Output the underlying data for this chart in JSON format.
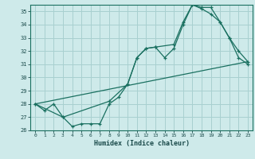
{
  "xlabel": "Humidex (Indice chaleur)",
  "bg_color": "#ceeaea",
  "grid_color": "#a8d0d0",
  "line_color": "#1a7060",
  "series1_x": [
    0,
    1,
    2,
    3,
    4,
    5,
    6,
    7,
    8,
    9,
    10,
    11,
    12,
    13,
    14,
    15,
    16,
    17,
    18,
    19,
    20,
    21,
    22,
    23
  ],
  "series1_y": [
    28.0,
    27.5,
    28.0,
    27.0,
    26.3,
    26.5,
    26.5,
    26.5,
    28.0,
    28.5,
    29.5,
    31.5,
    32.2,
    32.3,
    31.5,
    32.2,
    34.0,
    35.5,
    35.2,
    34.8,
    34.2,
    33.0,
    32.0,
    31.2
  ],
  "series2_x": [
    0,
    3,
    8,
    10,
    11,
    12,
    13,
    15,
    16,
    17,
    18,
    19,
    20,
    21,
    22,
    23
  ],
  "series2_y": [
    28.0,
    27.0,
    28.2,
    29.5,
    31.5,
    32.2,
    32.3,
    32.5,
    34.2,
    35.5,
    35.3,
    35.3,
    34.2,
    33.0,
    31.5,
    31.0
  ],
  "series3_x": [
    0,
    23
  ],
  "series3_y": [
    28.0,
    31.2
  ],
  "ylim": [
    26,
    35.5
  ],
  "xlim": [
    -0.5,
    23.5
  ],
  "yticks": [
    26,
    27,
    28,
    29,
    30,
    31,
    32,
    33,
    34,
    35
  ],
  "xticks": [
    0,
    1,
    2,
    3,
    4,
    5,
    6,
    7,
    8,
    9,
    10,
    11,
    12,
    13,
    14,
    15,
    16,
    17,
    18,
    19,
    20,
    21,
    22,
    23
  ]
}
